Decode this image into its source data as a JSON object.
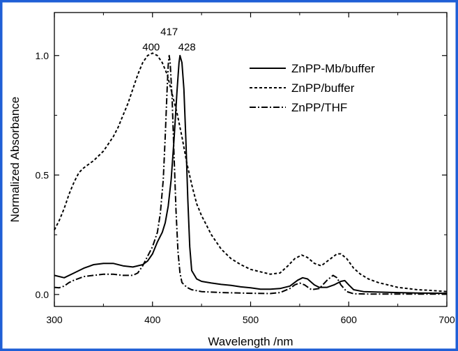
{
  "chart_data": {
    "type": "line",
    "title": "",
    "xlabel": "Wavelength /nm",
    "ylabel": "Normalized Absorbance",
    "xlim": [
      300,
      700
    ],
    "ylim": [
      -0.05,
      1.18
    ],
    "x_ticks": [
      300,
      400,
      500,
      600,
      700
    ],
    "x_tick_labels": [
      "300",
      "400",
      "500",
      "600",
      "700"
    ],
    "y_ticks": [
      0.0,
      0.5,
      1.0
    ],
    "y_tick_labels": [
      "0.0",
      "0.5",
      "1.0"
    ],
    "grid": false,
    "legend_position": "top-right",
    "frame_color": "#1f5fd6",
    "annotations": [
      {
        "text": "400",
        "x": 400,
        "y": 1.01
      },
      {
        "text": "417",
        "x": 417,
        "y": 1.08
      },
      {
        "text": "428",
        "x": 428,
        "y": 1.01
      }
    ],
    "series": [
      {
        "name": "ZnPP-Mb/buffer",
        "dash": "solid",
        "points": [
          [
            300,
            0.08
          ],
          [
            310,
            0.07
          ],
          [
            320,
            0.09
          ],
          [
            330,
            0.11
          ],
          [
            340,
            0.125
          ],
          [
            350,
            0.13
          ],
          [
            360,
            0.13
          ],
          [
            370,
            0.12
          ],
          [
            380,
            0.115
          ],
          [
            390,
            0.125
          ],
          [
            395,
            0.14
          ],
          [
            400,
            0.17
          ],
          [
            405,
            0.22
          ],
          [
            410,
            0.26
          ],
          [
            413,
            0.3
          ],
          [
            416,
            0.37
          ],
          [
            419,
            0.48
          ],
          [
            422,
            0.65
          ],
          [
            425,
            0.85
          ],
          [
            427,
            0.97
          ],
          [
            428,
            1.0
          ],
          [
            430,
            0.97
          ],
          [
            432,
            0.86
          ],
          [
            434,
            0.65
          ],
          [
            436,
            0.4
          ],
          [
            438,
            0.2
          ],
          [
            440,
            0.1
          ],
          [
            445,
            0.065
          ],
          [
            450,
            0.055
          ],
          [
            460,
            0.048
          ],
          [
            470,
            0.042
          ],
          [
            480,
            0.038
          ],
          [
            490,
            0.032
          ],
          [
            500,
            0.028
          ],
          [
            510,
            0.022
          ],
          [
            520,
            0.022
          ],
          [
            530,
            0.025
          ],
          [
            540,
            0.035
          ],
          [
            548,
            0.06
          ],
          [
            553,
            0.07
          ],
          [
            558,
            0.065
          ],
          [
            565,
            0.04
          ],
          [
            570,
            0.03
          ],
          [
            578,
            0.03
          ],
          [
            585,
            0.04
          ],
          [
            592,
            0.055
          ],
          [
            596,
            0.058
          ],
          [
            600,
            0.04
          ],
          [
            605,
            0.02
          ],
          [
            615,
            0.012
          ],
          [
            630,
            0.01
          ],
          [
            650,
            0.008
          ],
          [
            670,
            0.006
          ],
          [
            700,
            0.005
          ]
        ]
      },
      {
        "name": "ZnPP/buffer",
        "dash": "dashed",
        "points": [
          [
            300,
            0.27
          ],
          [
            305,
            0.31
          ],
          [
            310,
            0.36
          ],
          [
            315,
            0.42
          ],
          [
            320,
            0.47
          ],
          [
            325,
            0.51
          ],
          [
            330,
            0.53
          ],
          [
            340,
            0.56
          ],
          [
            350,
            0.6
          ],
          [
            360,
            0.66
          ],
          [
            365,
            0.7
          ],
          [
            370,
            0.75
          ],
          [
            375,
            0.8
          ],
          [
            380,
            0.86
          ],
          [
            385,
            0.92
          ],
          [
            390,
            0.97
          ],
          [
            395,
            1.0
          ],
          [
            400,
            1.01
          ],
          [
            405,
            1.0
          ],
          [
            410,
            0.97
          ],
          [
            415,
            0.92
          ],
          [
            420,
            0.84
          ],
          [
            425,
            0.76
          ],
          [
            430,
            0.66
          ],
          [
            435,
            0.55
          ],
          [
            440,
            0.46
          ],
          [
            445,
            0.38
          ],
          [
            450,
            0.33
          ],
          [
            455,
            0.29
          ],
          [
            460,
            0.25
          ],
          [
            470,
            0.19
          ],
          [
            480,
            0.15
          ],
          [
            490,
            0.125
          ],
          [
            500,
            0.105
          ],
          [
            510,
            0.095
          ],
          [
            520,
            0.085
          ],
          [
            530,
            0.09
          ],
          [
            538,
            0.12
          ],
          [
            545,
            0.15
          ],
          [
            552,
            0.165
          ],
          [
            558,
            0.155
          ],
          [
            565,
            0.13
          ],
          [
            572,
            0.12
          ],
          [
            580,
            0.145
          ],
          [
            588,
            0.17
          ],
          [
            592,
            0.17
          ],
          [
            598,
            0.15
          ],
          [
            605,
            0.11
          ],
          [
            612,
            0.085
          ],
          [
            620,
            0.065
          ],
          [
            630,
            0.05
          ],
          [
            640,
            0.04
          ],
          [
            650,
            0.03
          ],
          [
            660,
            0.025
          ],
          [
            670,
            0.02
          ],
          [
            680,
            0.018
          ],
          [
            690,
            0.015
          ],
          [
            700,
            0.012
          ]
        ]
      },
      {
        "name": "ZnPP/THF",
        "dash": "dashdot",
        "points": [
          [
            300,
            0.03
          ],
          [
            305,
            0.028
          ],
          [
            310,
            0.035
          ],
          [
            315,
            0.05
          ],
          [
            320,
            0.06
          ],
          [
            330,
            0.075
          ],
          [
            340,
            0.08
          ],
          [
            350,
            0.085
          ],
          [
            360,
            0.085
          ],
          [
            370,
            0.08
          ],
          [
            380,
            0.08
          ],
          [
            385,
            0.09
          ],
          [
            390,
            0.12
          ],
          [
            395,
            0.16
          ],
          [
            400,
            0.2
          ],
          [
            405,
            0.26
          ],
          [
            408,
            0.34
          ],
          [
            411,
            0.48
          ],
          [
            413,
            0.66
          ],
          [
            415,
            0.87
          ],
          [
            416,
            0.96
          ],
          [
            417,
            1.0
          ],
          [
            418,
            0.97
          ],
          [
            420,
            0.82
          ],
          [
            422,
            0.58
          ],
          [
            424,
            0.35
          ],
          [
            426,
            0.18
          ],
          [
            428,
            0.09
          ],
          [
            430,
            0.05
          ],
          [
            435,
            0.03
          ],
          [
            440,
            0.02
          ],
          [
            450,
            0.012
          ],
          [
            470,
            0.008
          ],
          [
            500,
            0.005
          ],
          [
            520,
            0.004
          ],
          [
            530,
            0.008
          ],
          [
            540,
            0.025
          ],
          [
            545,
            0.04
          ],
          [
            550,
            0.048
          ],
          [
            555,
            0.04
          ],
          [
            562,
            0.02
          ],
          [
            570,
            0.025
          ],
          [
            578,
            0.06
          ],
          [
            584,
            0.08
          ],
          [
            588,
            0.07
          ],
          [
            592,
            0.04
          ],
          [
            598,
            0.012
          ],
          [
            605,
            0.003
          ],
          [
            620,
            0.002
          ],
          [
            650,
            0.002
          ],
          [
            700,
            0.002
          ]
        ]
      }
    ]
  }
}
